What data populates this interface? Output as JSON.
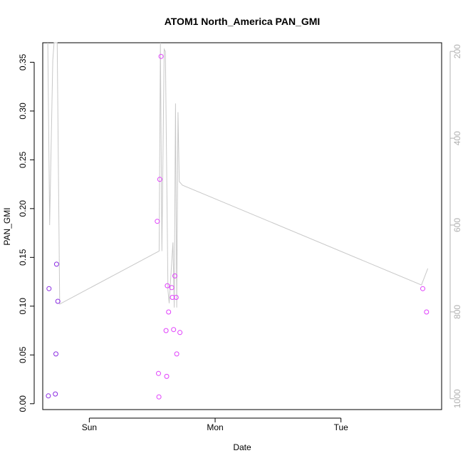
{
  "chart_data": {
    "type": "scatter",
    "title": "ATOM1 North_America PAN_GMI",
    "xlabel": "Date",
    "ylabel": "PAN_GMI",
    "x_ticks": [
      {
        "label": "Sun",
        "value": 0
      },
      {
        "label": "Mon",
        "value": 1
      },
      {
        "label": "Tue",
        "value": 2
      }
    ],
    "xlim": [
      -0.37,
      2.8
    ],
    "ylim": [
      -0.006,
      0.37
    ],
    "y_ticks": [
      "0.00",
      "0.05",
      "0.10",
      "0.15",
      "0.20",
      "0.25",
      "0.30",
      "0.35"
    ],
    "y2_ticks": [
      "200",
      "400",
      "600",
      "800",
      "1000"
    ],
    "y2lim": [
      1025,
      180
    ],
    "y2_reversed": true,
    "grid": false,
    "colors": {
      "line": "#c8c8c8",
      "points_early": "#8a2be2",
      "points_late": "#e040fb",
      "right_axis": "#b0b0b0"
    },
    "series": [
      {
        "kind": "points",
        "values": [
          {
            "x": -0.325,
            "y": 0.008
          },
          {
            "x": -0.32,
            "y": 0.118
          },
          {
            "x": -0.27,
            "y": 0.01
          },
          {
            "x": -0.265,
            "y": 0.051
          },
          {
            "x": -0.26,
            "y": 0.143
          },
          {
            "x": -0.25,
            "y": 0.105
          },
          {
            "x": 0.54,
            "y": 0.187
          },
          {
            "x": 0.55,
            "y": 0.031
          },
          {
            "x": 0.553,
            "y": 0.007
          },
          {
            "x": 0.56,
            "y": 0.23
          },
          {
            "x": 0.57,
            "y": 0.356
          },
          {
            "x": 0.61,
            "y": 0.075
          },
          {
            "x": 0.615,
            "y": 0.028
          },
          {
            "x": 0.62,
            "y": 0.121
          },
          {
            "x": 0.63,
            "y": 0.094
          },
          {
            "x": 0.655,
            "y": 0.119
          },
          {
            "x": 0.66,
            "y": 0.109
          },
          {
            "x": 0.67,
            "y": 0.076
          },
          {
            "x": 0.68,
            "y": 0.131
          },
          {
            "x": 0.69,
            "y": 0.109
          },
          {
            "x": 0.695,
            "y": 0.051
          },
          {
            "x": 0.72,
            "y": 0.073
          },
          {
            "x": 2.65,
            "y": 0.118
          },
          {
            "x": 2.68,
            "y": 0.094
          }
        ]
      },
      {
        "kind": "line",
        "axis": "right",
        "values": [
          {
            "x": -0.33,
            "y": 180
          },
          {
            "x": -0.315,
            "y": 600
          },
          {
            "x": -0.29,
            "y": 220
          },
          {
            "x": -0.28,
            "y": 180
          },
          {
            "x": -0.255,
            "y": 180
          },
          {
            "x": -0.235,
            "y": 782
          },
          {
            "x": 0.555,
            "y": 660
          },
          {
            "x": 0.565,
            "y": 180
          },
          {
            "x": 0.577,
            "y": 660
          },
          {
            "x": 0.595,
            "y": 195
          },
          {
            "x": 0.605,
            "y": 200
          },
          {
            "x": 0.625,
            "y": 750
          },
          {
            "x": 0.635,
            "y": 780
          },
          {
            "x": 0.665,
            "y": 640
          },
          {
            "x": 0.675,
            "y": 790
          },
          {
            "x": 0.685,
            "y": 320
          },
          {
            "x": 0.695,
            "y": 790
          },
          {
            "x": 0.705,
            "y": 340
          },
          {
            "x": 0.715,
            "y": 500
          },
          {
            "x": 0.74,
            "y": 508
          },
          {
            "x": 2.64,
            "y": 738
          },
          {
            "x": 2.69,
            "y": 700
          }
        ]
      }
    ]
  }
}
